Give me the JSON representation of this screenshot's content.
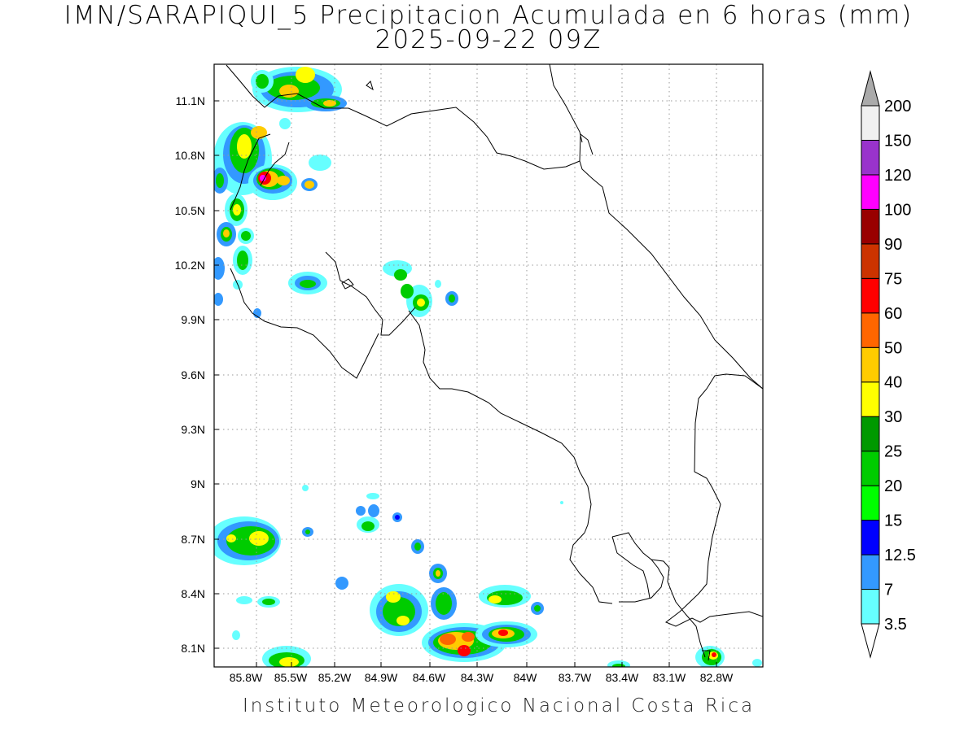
{
  "title_line1": "IMN/SARAPIQUI_5 Precipitacion Acumulada en 6 horas (mm)",
  "title_line2": "2025-09-22 09Z",
  "footer": "Instituto Meteorologico Nacional Costa Rica",
  "map": {
    "lon_range": [
      -86.05,
      -82.5
    ],
    "lat_range": [
      8.0,
      11.3
    ],
    "lon_ticks": [
      "85.8W",
      "85.5W",
      "85.2W",
      "84.9W",
      "84.6W",
      "84.3W",
      "84W",
      "83.7W",
      "83.4W",
      "83.1W",
      "82.8W"
    ],
    "lat_ticks": [
      "11.1N",
      "10.8N",
      "10.5N",
      "10.2N",
      "9.9N",
      "9.6N",
      "9.3N",
      "9N",
      "8.7N",
      "8.4N",
      "8.1N"
    ],
    "grid": "dotted"
  },
  "colorbar": {
    "labels": [
      "3.5",
      "7",
      "12.5",
      "15",
      "20",
      "25",
      "30",
      "40",
      "50",
      "60",
      "75",
      "90",
      "100",
      "120",
      "150",
      "200"
    ],
    "colors": [
      "#66ffff",
      "#3399ff",
      "#0000ff",
      "#00ff00",
      "#00cc00",
      "#009900",
      "#ffff00",
      "#ffcc00",
      "#ff6600",
      "#ff0000",
      "#cc3300",
      "#990000",
      "#ff00ff",
      "#9933cc",
      "#f0f0f0",
      "#999999"
    ],
    "top_triangle_color": "#aaaaaa",
    "bottom_triangle_color": "#ffffff"
  }
}
